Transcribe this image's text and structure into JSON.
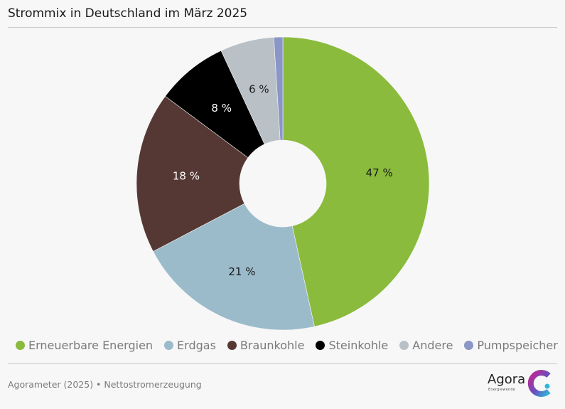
{
  "title": "Strommix in Deutschland im März 2025",
  "source": "Agorameter (2025) • Nettostromerzeugung",
  "logo": {
    "word": "Agora",
    "sub": "Energiewende"
  },
  "chart_data": {
    "type": "pie",
    "style": "donut",
    "categories": [
      "Erneuerbare Energien",
      "Erdgas",
      "Braunkohle",
      "Steinkohle",
      "Andere",
      "Pumpspeicher"
    ],
    "values": [
      47,
      21,
      18,
      8,
      6,
      1
    ],
    "data_labels": [
      "47 %",
      "21 %",
      "18 %",
      "8 %",
      "6 %",
      ""
    ],
    "colors": [
      "#8abb3c",
      "#9bbbcb",
      "#553834",
      "#000000",
      "#b9c0c6",
      "#8a96c6"
    ],
    "label_colors": [
      "#1a1a1a",
      "#1a1a1a",
      "#ffffff",
      "#ffffff",
      "#1a1a1a",
      "#1a1a1a"
    ],
    "legend_position": "bottom"
  }
}
